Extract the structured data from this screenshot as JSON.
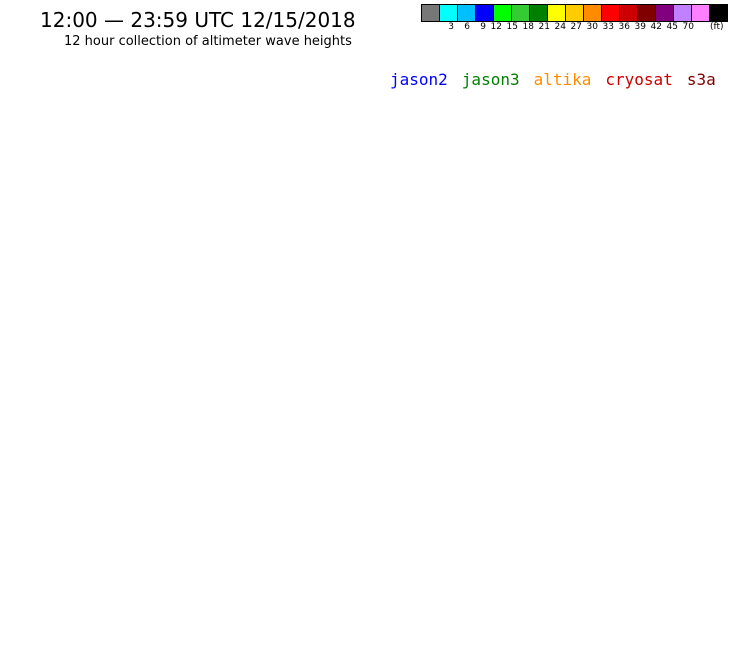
{
  "header": {
    "title": "12:00 — 23:59 UTC 12/15/2018",
    "subtitle": "12 hour collection of altimeter wave heights"
  },
  "scale": {
    "colors": [
      "#777777",
      "#00ffff",
      "#00bfff",
      "#0000ff",
      "#00ff00",
      "#33cc33",
      "#008000",
      "#ffff00",
      "#ffcc00",
      "#ff8c00",
      "#ff0000",
      "#cc0000",
      "#800000",
      "#800080",
      "#c080ff",
      "#ff80ff",
      "#000000"
    ],
    "ticks": [
      "3",
      "6",
      "9",
      "12",
      "15",
      "18",
      "21",
      "24",
      "27",
      "30",
      "33",
      "36",
      "39",
      "42",
      "45",
      "70"
    ],
    "unit": "(ft)"
  },
  "legend": [
    {
      "name": "jason2",
      "color": "#0000ff"
    },
    {
      "name": "jason3",
      "color": "#008000"
    },
    {
      "name": "altika",
      "color": "#ff8c00"
    },
    {
      "name": "cryosat",
      "color": "#cc0000"
    },
    {
      "name": "s3a",
      "color": "#800000"
    }
  ]
}
